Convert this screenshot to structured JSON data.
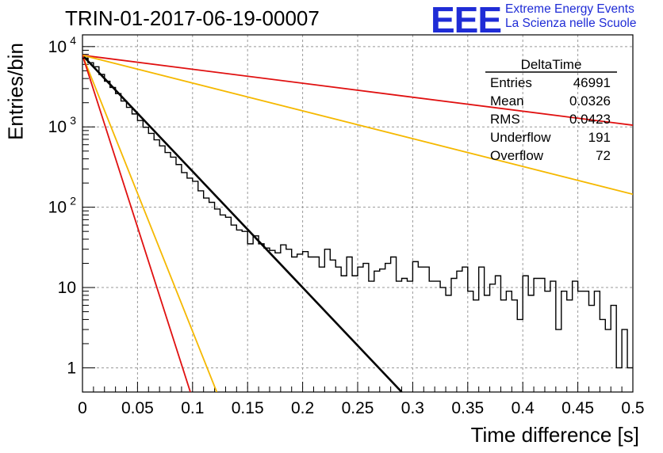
{
  "title": "TRIN-01-2017-06-19-00007",
  "logo": {
    "mark": "EEE",
    "line1": "Extreme Energy Events",
    "line2": "La Scienza nelle Scuole",
    "color": "#1f2cd6"
  },
  "colors": {
    "histogram": "#000000",
    "fit": "#000000",
    "red": "#e01010",
    "orange": "#f5b800",
    "grid": "#999999"
  },
  "stats": {
    "title": "DeltaTime",
    "rows": [
      {
        "label": "Entries",
        "value": "46991"
      },
      {
        "label": "Mean",
        "value": "0.0326"
      },
      {
        "label": "RMS",
        "value": "0.0423"
      },
      {
        "label": "Underflow",
        "value": "191"
      },
      {
        "label": "Overflow",
        "value": "72"
      }
    ]
  },
  "chart_data": {
    "type": "line",
    "xlabel": "Time difference [s]",
    "ylabel": "Entries/bin",
    "xlim": [
      0,
      0.5
    ],
    "ylim": [
      0.5,
      14000
    ],
    "yscale": "log",
    "grid": true,
    "legend": "stats box top-right",
    "xticks": [
      "0",
      "0.05",
      "0.1",
      "0.15",
      "0.2",
      "0.25",
      "0.3",
      "0.35",
      "0.4",
      "0.45",
      "0.5"
    ],
    "yticks": [
      {
        "value": 1,
        "label": "1"
      },
      {
        "value": 10,
        "label": "10"
      },
      {
        "value": 100,
        "label": "10",
        "sup": "2"
      },
      {
        "value": 1000,
        "label": "10",
        "sup": "3"
      },
      {
        "value": 10000,
        "label": "10",
        "sup": "4"
      }
    ],
    "histogram": {
      "bin_width": 0.005,
      "counts": [
        7200,
        6300,
        5600,
        4500,
        3700,
        3100,
        2600,
        2100,
        1750,
        1450,
        1200,
        990,
        830,
        690,
        580,
        480,
        420,
        340,
        270,
        230,
        210,
        160,
        130,
        115,
        95,
        80,
        75,
        60,
        52,
        50,
        35,
        44,
        35,
        31,
        29,
        27,
        34,
        30,
        24,
        26,
        28,
        24,
        24,
        18,
        30,
        22,
        18,
        14,
        24,
        14,
        18,
        20,
        12,
        16,
        17,
        20,
        24,
        12,
        13,
        12,
        21,
        18,
        18,
        12,
        12,
        10,
        8,
        13,
        16,
        18,
        9,
        7,
        18,
        8,
        11,
        14,
        7,
        9,
        7,
        4,
        14,
        8,
        13,
        13,
        9,
        12,
        3,
        9,
        7,
        12,
        9,
        9,
        6,
        9,
        4,
        3,
        6,
        1,
        3,
        1
      ],
      "entries": 46991,
      "mean": 0.0326,
      "rms": 0.0423,
      "underflow": 191,
      "overflow": 72
    },
    "series": [
      {
        "color": "black",
        "x": [
          0,
          0.29
        ],
        "y": [
          7800,
          0.5
        ]
      },
      {
        "color": "red",
        "x": [
          0,
          0.5
        ],
        "y": [
          7800,
          1050
        ]
      },
      {
        "color": "orange",
        "x": [
          0,
          0.5
        ],
        "y": [
          7800,
          145
        ]
      },
      {
        "color": "orange",
        "x": [
          0,
          0.122
        ],
        "y": [
          7800,
          0.5
        ]
      },
      {
        "color": "red",
        "x": [
          0,
          0.098
        ],
        "y": [
          7800,
          0.5
        ]
      }
    ]
  }
}
